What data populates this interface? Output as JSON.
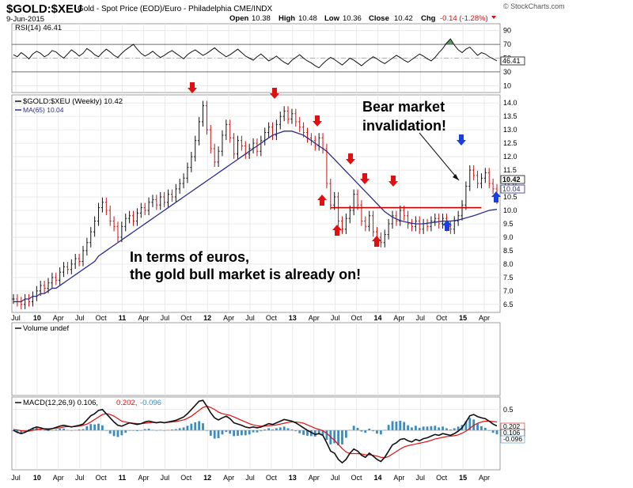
{
  "header": {
    "symbol": "$GOLD:$XEU",
    "description": "Gold - Spot Price (EOD)/Euro - Philadelphia CME/INDX",
    "date": "9-Jun-2015",
    "watermark": "© StockCharts.com",
    "quote": {
      "open_label": "Open",
      "open": "10.38",
      "high_label": "High",
      "high": "10.48",
      "low_label": "Low",
      "low": "10.36",
      "close_label": "Close",
      "close": "10.42",
      "chg_label": "Chg",
      "chg": "-0.14 (-1.28%)"
    }
  },
  "annotations": {
    "bear_line1": "Bear market",
    "bear_line2": "invalidation!",
    "euro_line1": "In terms of euros,",
    "euro_line2": "the gold bull market is already on!"
  },
  "colors": {
    "price": "#111111",
    "ma": "#2d2d8c",
    "red_arrow": "#e01010",
    "blue_arrow": "#1a3fe0",
    "red_line": "#c00000",
    "macd_signal": "#e01010",
    "macd_hist": "#3a8dc0",
    "down": "#cc1111"
  },
  "chart_data": [
    {
      "type": "line",
      "panel": "rsi",
      "title": "RSI(14) 46.41",
      "current": "46.41",
      "ylim": [
        0,
        100
      ],
      "y_ticks": [
        "90",
        "70",
        "50",
        "30",
        "10"
      ],
      "reference_lines": [
        70,
        30
      ],
      "values": [
        55,
        52,
        58,
        54,
        49,
        56,
        60,
        57,
        52,
        55,
        61,
        59,
        54,
        50,
        56,
        62,
        58,
        53,
        57,
        64,
        60,
        55,
        52,
        58,
        63,
        59,
        54,
        51,
        57,
        62,
        66,
        70,
        63,
        57,
        53,
        56,
        60,
        55,
        51,
        54,
        58,
        61,
        57,
        53,
        49,
        55,
        59,
        62,
        58,
        54,
        57,
        61,
        65,
        60,
        56,
        52,
        55,
        59,
        63,
        58,
        53,
        50,
        47,
        52,
        56,
        51,
        46,
        49,
        53,
        48,
        44,
        41,
        47,
        51,
        55,
        50,
        46,
        43,
        39,
        36,
        42,
        47,
        51,
        48,
        44,
        40,
        45,
        50,
        47,
        43,
        39,
        44,
        48,
        52,
        49,
        45,
        42,
        46,
        50,
        54,
        51,
        47,
        44,
        48,
        52,
        56,
        53,
        49,
        46,
        51,
        58,
        64,
        72,
        78,
        69,
        62,
        58,
        63,
        66,
        60,
        54,
        58,
        56,
        52,
        49,
        46
      ]
    },
    {
      "type": "line",
      "panel": "price",
      "title": "$GOLD:$XEU (Weekly) 10.42",
      "ma_label": "MA(65) 10.04",
      "last_price": "10.42",
      "last_ma": "10.04",
      "ylim": [
        6.2,
        14.3
      ],
      "y_ticks": [
        "14.0",
        "13.5",
        "13.0",
        "12.5",
        "12.0",
        "11.5",
        "11.0",
        "10.5",
        "10.0",
        "9.5",
        "9.0",
        "8.5",
        "8.0",
        "7.5",
        "7.0",
        "6.5"
      ],
      "x_ticks": [
        "Jul",
        "10",
        "Apr",
        "Jul",
        "Oct",
        "11",
        "Apr",
        "Jul",
        "Oct",
        "12",
        "Apr",
        "Jul",
        "Oct",
        "13",
        "Apr",
        "Jul",
        "Oct",
        "14",
        "Apr",
        "Jul",
        "Oct",
        "15",
        "Apr"
      ],
      "series": [
        {
          "name": "$GOLD:$XEU",
          "values": [
            6.7,
            6.6,
            6.5,
            6.7,
            6.6,
            6.8,
            7.0,
            7.2,
            7.1,
            7.3,
            7.5,
            7.4,
            7.7,
            7.9,
            7.8,
            8.0,
            8.2,
            8.1,
            8.5,
            8.8,
            9.2,
            9.6,
            10.1,
            10.3,
            10.0,
            9.6,
            9.4,
            9.0,
            9.4,
            9.7,
            9.8,
            9.6,
            9.9,
            10.1,
            10.0,
            10.3,
            10.4,
            10.2,
            10.5,
            10.3,
            10.6,
            10.5,
            10.8,
            11.0,
            11.2,
            11.6,
            12.0,
            12.6,
            13.3,
            13.9,
            13.0,
            12.3,
            11.8,
            12.2,
            12.8,
            13.2,
            12.7,
            12.1,
            12.6,
            12.4,
            12.1,
            12.3,
            12.5,
            12.2,
            12.6,
            12.9,
            13.1,
            12.8,
            13.2,
            13.5,
            13.7,
            13.4,
            13.6,
            13.3,
            13.1,
            12.9,
            12.7,
            12.6,
            12.4,
            12.7,
            12.3,
            11.0,
            10.2,
            10.5,
            9.6,
            9.3,
            9.7,
            10.0,
            10.6,
            10.2,
            9.6,
            9.4,
            9.8,
            9.2,
            9.0,
            8.8,
            9.1,
            9.5,
            9.8,
            9.6,
            10.0,
            9.8,
            9.5,
            9.4,
            9.6,
            9.3,
            9.5,
            9.4,
            9.6,
            9.7,
            9.5,
            9.7,
            9.4,
            9.3,
            9.6,
            9.8,
            10.2,
            10.9,
            11.5,
            11.3,
            11.0,
            11.2,
            11.4,
            11.0,
            10.8,
            10.42
          ]
        },
        {
          "name": "MA(65)",
          "values": [
            6.6,
            6.6,
            6.6,
            6.7,
            6.7,
            6.8,
            6.8,
            6.9,
            6.9,
            7.0,
            7.1,
            7.1,
            7.2,
            7.3,
            7.4,
            7.5,
            7.6,
            7.7,
            7.8,
            7.9,
            8.0,
            8.1,
            8.3,
            8.4,
            8.5,
            8.6,
            8.7,
            8.8,
            8.9,
            9.0,
            9.1,
            9.2,
            9.3,
            9.4,
            9.5,
            9.6,
            9.7,
            9.8,
            9.9,
            10.0,
            10.1,
            10.2,
            10.3,
            10.4,
            10.5,
            10.6,
            10.7,
            10.8,
            10.9,
            11.0,
            11.1,
            11.2,
            11.3,
            11.4,
            11.5,
            11.6,
            11.7,
            11.8,
            11.9,
            12.0,
            12.1,
            12.2,
            12.3,
            12.4,
            12.5,
            12.6,
            12.7,
            12.8,
            12.85,
            12.9,
            12.95,
            12.95,
            12.95,
            12.9,
            12.85,
            12.8,
            12.7,
            12.6,
            12.5,
            12.4,
            12.3,
            12.2,
            12.05,
            11.9,
            11.75,
            11.6,
            11.45,
            11.3,
            11.15,
            11.0,
            10.85,
            10.7,
            10.55,
            10.4,
            10.25,
            10.1,
            9.95,
            9.85,
            9.75,
            9.68,
            9.62,
            9.58,
            9.55,
            9.52,
            9.5,
            9.5,
            9.5,
            9.52,
            9.54,
            9.56,
            9.58,
            9.6,
            9.6,
            9.6,
            9.62,
            9.64,
            9.68,
            9.72,
            9.76,
            9.8,
            9.85,
            9.9,
            9.95,
            10.0,
            10.02,
            10.04
          ]
        }
      ],
      "red_line_level": 10.1
    },
    {
      "type": "bar",
      "panel": "volume",
      "title": "Volume undef"
    },
    {
      "type": "line",
      "panel": "macd",
      "title_main": "MACD(12,26,9) 0.106,",
      "title_signal": "0.202,",
      "title_hist": "-0.096",
      "ylim": [
        -0.95,
        0.8
      ],
      "y_ticks": [
        "0.5",
        "0.0"
      ],
      "last_values": [
        "0.202",
        "0.106",
        "-0.096"
      ],
      "series": [
        {
          "name": "MACD(12,26,9)",
          "values": [
            0.0,
            -0.05,
            -0.08,
            -0.05,
            0.0,
            0.05,
            0.08,
            0.06,
            0.03,
            0.02,
            0.04,
            0.07,
            0.1,
            0.12,
            0.1,
            0.08,
            0.1,
            0.12,
            0.15,
            0.25,
            0.35,
            0.4,
            0.48,
            0.5,
            0.4,
            0.3,
            0.2,
            0.12,
            0.1,
            0.14,
            0.18,
            0.16,
            0.14,
            0.16,
            0.2,
            0.22,
            0.2,
            0.18,
            0.2,
            0.18,
            0.2,
            0.22,
            0.24,
            0.28,
            0.32,
            0.4,
            0.5,
            0.6,
            0.7,
            0.72,
            0.58,
            0.42,
            0.3,
            0.25,
            0.3,
            0.34,
            0.28,
            0.18,
            0.15,
            0.12,
            0.08,
            0.06,
            0.08,
            0.06,
            0.08,
            0.12,
            0.16,
            0.14,
            0.18,
            0.22,
            0.26,
            0.24,
            0.22,
            0.18,
            0.12,
            0.06,
            0.0,
            -0.05,
            -0.1,
            -0.08,
            -0.12,
            -0.3,
            -0.5,
            -0.55,
            -0.7,
            -0.78,
            -0.7,
            -0.55,
            -0.45,
            -0.5,
            -0.6,
            -0.65,
            -0.55,
            -0.62,
            -0.7,
            -0.75,
            -0.65,
            -0.5,
            -0.35,
            -0.3,
            -0.22,
            -0.2,
            -0.25,
            -0.28,
            -0.22,
            -0.25,
            -0.2,
            -0.18,
            -0.14,
            -0.1,
            -0.12,
            -0.08,
            -0.1,
            -0.12,
            -0.08,
            -0.02,
            0.06,
            0.2,
            0.35,
            0.38,
            0.33,
            0.3,
            0.28,
            0.22,
            0.15,
            0.106
          ]
        },
        {
          "name": "Signal",
          "values": [
            0.02,
            0.01,
            -0.01,
            -0.02,
            -0.02,
            0.0,
            0.02,
            0.03,
            0.04,
            0.04,
            0.04,
            0.05,
            0.06,
            0.08,
            0.09,
            0.09,
            0.09,
            0.1,
            0.12,
            0.15,
            0.2,
            0.26,
            0.32,
            0.38,
            0.4,
            0.38,
            0.34,
            0.28,
            0.22,
            0.2,
            0.18,
            0.17,
            0.16,
            0.16,
            0.17,
            0.18,
            0.19,
            0.19,
            0.19,
            0.19,
            0.19,
            0.2,
            0.21,
            0.23,
            0.25,
            0.29,
            0.34,
            0.41,
            0.48,
            0.55,
            0.58,
            0.55,
            0.5,
            0.44,
            0.4,
            0.38,
            0.36,
            0.32,
            0.28,
            0.24,
            0.2,
            0.16,
            0.13,
            0.11,
            0.1,
            0.1,
            0.11,
            0.12,
            0.13,
            0.15,
            0.17,
            0.19,
            0.2,
            0.2,
            0.19,
            0.17,
            0.13,
            0.09,
            0.05,
            0.02,
            -0.01,
            -0.07,
            -0.16,
            -0.24,
            -0.34,
            -0.44,
            -0.52,
            -0.56,
            -0.56,
            -0.56,
            -0.57,
            -0.59,
            -0.59,
            -0.6,
            -0.62,
            -0.65,
            -0.66,
            -0.63,
            -0.57,
            -0.51,
            -0.45,
            -0.4,
            -0.37,
            -0.35,
            -0.33,
            -0.31,
            -0.29,
            -0.27,
            -0.24,
            -0.21,
            -0.19,
            -0.17,
            -0.15,
            -0.14,
            -0.13,
            -0.11,
            -0.07,
            -0.02,
            0.05,
            0.12,
            0.17,
            0.2,
            0.22,
            0.22,
            0.21,
            0.202
          ]
        }
      ]
    }
  ]
}
